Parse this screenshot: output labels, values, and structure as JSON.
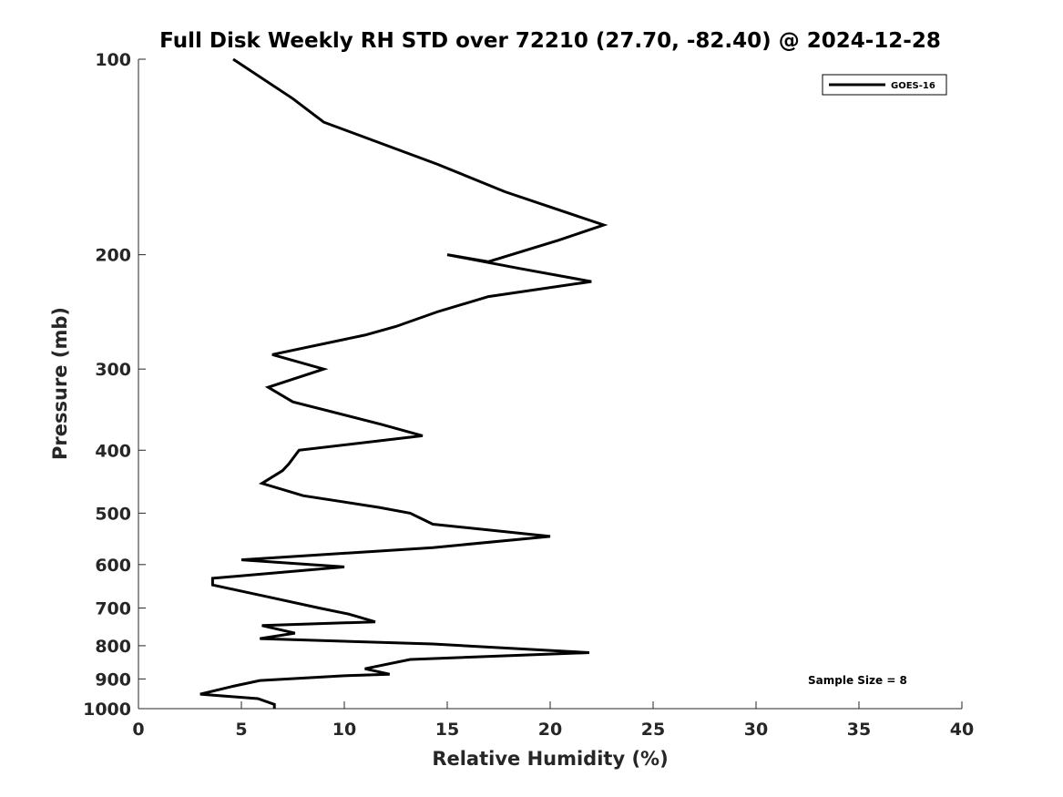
{
  "chart_data": {
    "type": "line",
    "title": "Full Disk Weekly RH STD over 72210 (27.70, -82.40) @ 2024-12-28",
    "xlabel": "Relative Humidity (%)",
    "ylabel": "Pressure (mb)",
    "xlim": [
      0,
      40
    ],
    "ylim": [
      100,
      1000
    ],
    "y_scale": "log",
    "y_reversed": true,
    "grid": false,
    "legend_position": "top-right",
    "x_ticks": [
      "0",
      "5",
      "10",
      "15",
      "20",
      "25",
      "30",
      "35",
      "40"
    ],
    "y_ticks": [
      "100",
      "200",
      "300",
      "400",
      "500",
      "600",
      "700",
      "800",
      "900",
      "1000"
    ],
    "annotation": "Sample Size = 8",
    "series": [
      {
        "name": "GOES-16",
        "color": "#000000",
        "points": [
          [
            4.6,
            100
          ],
          [
            7.5,
            115
          ],
          [
            9.0,
            125
          ],
          [
            14.5,
            145
          ],
          [
            17.8,
            160
          ],
          [
            22.6,
            180
          ],
          [
            20.4,
            190
          ],
          [
            17.0,
            205
          ],
          [
            15.0,
            200
          ],
          [
            18.5,
            210
          ],
          [
            22.0,
            220
          ],
          [
            17.0,
            232
          ],
          [
            14.5,
            245
          ],
          [
            12.5,
            258
          ],
          [
            11.0,
            266
          ],
          [
            6.5,
            285
          ],
          [
            9.0,
            300
          ],
          [
            6.3,
            320
          ],
          [
            7.5,
            337
          ],
          [
            11.8,
            365
          ],
          [
            13.8,
            380
          ],
          [
            7.8,
            400
          ],
          [
            7.3,
            420
          ],
          [
            7.0,
            430
          ],
          [
            6.0,
            450
          ],
          [
            8.0,
            470
          ],
          [
            11.7,
            490
          ],
          [
            13.2,
            500
          ],
          [
            14.3,
            520
          ],
          [
            20.0,
            543
          ],
          [
            14.3,
            565
          ],
          [
            5.0,
            590
          ],
          [
            10.0,
            605
          ],
          [
            3.6,
            630
          ],
          [
            3.6,
            645
          ],
          [
            6.5,
            675
          ],
          [
            8.8,
            700
          ],
          [
            10.2,
            715
          ],
          [
            11.5,
            735
          ],
          [
            6.0,
            745
          ],
          [
            7.6,
            765
          ],
          [
            5.9,
            780
          ],
          [
            14.3,
            795
          ],
          [
            21.9,
            820
          ],
          [
            13.2,
            840
          ],
          [
            11.0,
            868
          ],
          [
            12.2,
            885
          ],
          [
            10.0,
            890
          ],
          [
            5.9,
            905
          ],
          [
            4.5,
            925
          ],
          [
            3.0,
            950
          ],
          [
            5.8,
            965
          ],
          [
            6.6,
            985
          ],
          [
            6.6,
            1000
          ]
        ]
      }
    ]
  }
}
